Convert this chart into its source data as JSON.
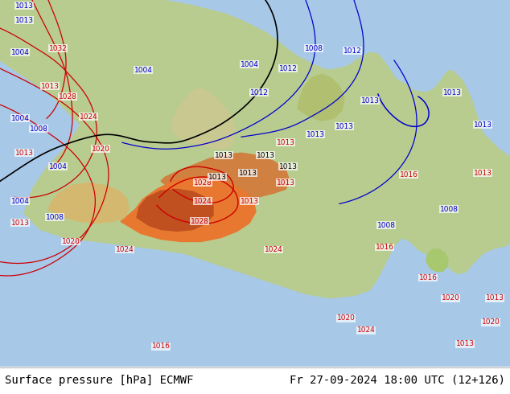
{
  "title_left": "Surface pressure [hPa] ECMWF",
  "title_right": "Fr 27-09-2024 18:00 UTC (12+126)",
  "title_fontsize": 10,
  "title_color": "#000000",
  "background_color": "#ffffff",
  "figsize": [
    6.34,
    4.9
  ],
  "dpi": 100
}
